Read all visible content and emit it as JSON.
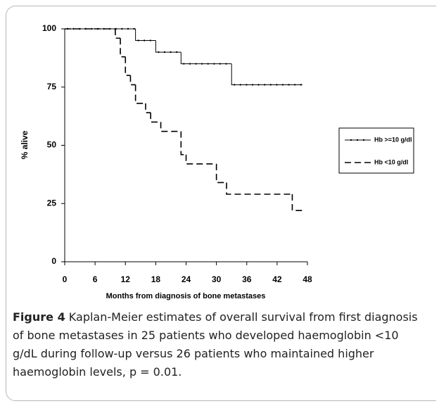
{
  "chart_data": {
    "type": "step",
    "xlabel": "Months from diagnosis of bone metastases",
    "ylabel": "% alive",
    "xlim": [
      0,
      48
    ],
    "xticks": [
      0,
      6,
      12,
      18,
      24,
      30,
      36,
      42,
      48
    ],
    "ylim": [
      0,
      100
    ],
    "yticks": [
      0,
      25,
      50,
      75,
      100
    ],
    "legend": "right",
    "series": [
      {
        "name": "Hb >=10 g/dl",
        "color": "#000000",
        "dashed": false,
        "markers": true,
        "x": [
          0,
          14,
          18,
          23,
          33,
          47
        ],
        "values": [
          100,
          95,
          90,
          85,
          76,
          76
        ]
      },
      {
        "name": "Hb <10 g/dl",
        "color": "#000000",
        "dashed": true,
        "markers": false,
        "x": [
          0,
          10,
          11,
          12,
          13,
          14,
          16,
          17,
          19,
          23,
          24,
          30,
          32,
          45,
          47
        ],
        "values": [
          100,
          96,
          88,
          80,
          76,
          68,
          64,
          60,
          56,
          46,
          42,
          34,
          29,
          22,
          22
        ]
      }
    ]
  },
  "caption": {
    "label": "Figure 4",
    "text": "Kaplan-Meier estimates of overall survival from first diagnosis of bone metastases in 25 patients who developed haemoglobin <10 g/dL during follow-up versus 26 patients who maintained higher haemoglobin levels, p = 0.01."
  }
}
